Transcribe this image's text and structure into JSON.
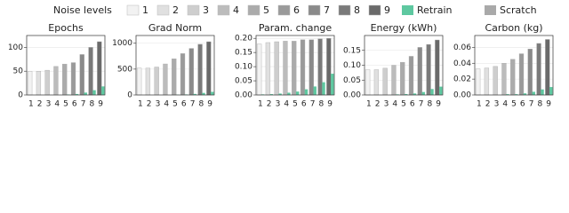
{
  "legend": {
    "title": "Noise levels",
    "labels": [
      "1",
      "2",
      "3",
      "4",
      "5",
      "6",
      "7",
      "8",
      "9"
    ]
  },
  "chart_data": [
    {
      "type": "bar",
      "title": "Epochs",
      "categories": [
        "1",
        "2",
        "3",
        "4",
        "5",
        "6",
        "7",
        "8",
        "9"
      ],
      "series": [
        {
          "name": "Retrain",
          "color": "#5ec8a0",
          "values": [
            0,
            0,
            0,
            0,
            1,
            2,
            5,
            10,
            18
          ]
        },
        {
          "name": "Scratch",
          "color": "#a9a9a9",
          "colors": [
            "#f2f2f2",
            "#e0e0e0",
            "#cecece",
            "#bcbcbc",
            "#ababab",
            "#9a9a9a",
            "#8a8a8a",
            "#7a7a7a",
            "#6a6a6a"
          ],
          "values": [
            50,
            50,
            52,
            60,
            65,
            68,
            85,
            100,
            112
          ]
        }
      ],
      "ylim": [
        0,
        125
      ],
      "yticks": [
        0,
        50,
        100
      ]
    },
    {
      "type": "bar",
      "title": "Grad Norm",
      "categories": [
        "1",
        "2",
        "3",
        "4",
        "5",
        "6",
        "7",
        "8",
        "9"
      ],
      "series": [
        {
          "name": "Retrain",
          "color": "#5ec8a0",
          "values": [
            0,
            0,
            0,
            0,
            5,
            10,
            20,
            40,
            60
          ]
        },
        {
          "name": "Scratch",
          "color": "#a9a9a9",
          "colors": [
            "#f2f2f2",
            "#e0e0e0",
            "#cecece",
            "#bcbcbc",
            "#ababab",
            "#9a9a9a",
            "#8a8a8a",
            "#7a7a7a",
            "#6a6a6a"
          ],
          "values": [
            520,
            520,
            540,
            600,
            700,
            800,
            900,
            980,
            1030
          ]
        }
      ],
      "ylim": [
        0,
        1150
      ],
      "yticks": [
        0,
        500,
        1000
      ]
    },
    {
      "type": "bar",
      "title": "Param. change",
      "categories": [
        "1",
        "2",
        "3",
        "4",
        "5",
        "6",
        "7",
        "8",
        "9"
      ],
      "series": [
        {
          "name": "Retrain",
          "color": "#5ec8a0",
          "values": [
            0.002,
            0.003,
            0.005,
            0.008,
            0.012,
            0.02,
            0.03,
            0.045,
            0.075
          ]
        },
        {
          "name": "Scratch",
          "color": "#a9a9a9",
          "colors": [
            "#f2f2f2",
            "#e0e0e0",
            "#cecece",
            "#bcbcbc",
            "#ababab",
            "#9a9a9a",
            "#8a8a8a",
            "#7a7a7a",
            "#6a6a6a"
          ],
          "values": [
            0.18,
            0.185,
            0.188,
            0.19,
            0.19,
            0.195,
            0.195,
            0.198,
            0.2
          ]
        }
      ],
      "ylim": [
        0,
        0.21
      ],
      "yticks": [
        {
          "value": 0,
          "label": "0.00"
        },
        {
          "value": 0.05,
          "label": "0.05"
        },
        {
          "value": 0.1,
          "label": "0.10"
        },
        {
          "value": 0.15,
          "label": "0.15"
        },
        {
          "value": 0.2,
          "label": "0.20"
        }
      ]
    },
    {
      "type": "bar",
      "title": "Energy (kWh)",
      "categories": [
        "1",
        "2",
        "3",
        "4",
        "5",
        "6",
        "7",
        "8",
        "9"
      ],
      "series": [
        {
          "name": "Retrain",
          "color": "#5ec8a0",
          "values": [
            0,
            0,
            0,
            0.002,
            0.003,
            0.005,
            0.01,
            0.02,
            0.028
          ]
        },
        {
          "name": "Scratch",
          "color": "#a9a9a9",
          "colors": [
            "#f2f2f2",
            "#e0e0e0",
            "#cecece",
            "#bcbcbc",
            "#ababab",
            "#9a9a9a",
            "#8a8a8a",
            "#7a7a7a",
            "#6a6a6a"
          ],
          "values": [
            0.085,
            0.085,
            0.09,
            0.1,
            0.11,
            0.13,
            0.16,
            0.17,
            0.185
          ]
        }
      ],
      "ylim": [
        0,
        0.2
      ],
      "yticks": [
        {
          "value": 0,
          "label": "0.00"
        },
        {
          "value": 0.05,
          "label": "0.05"
        },
        {
          "value": 0.1,
          "label": "0.10"
        },
        {
          "value": 0.15,
          "label": "0.15"
        }
      ]
    },
    {
      "type": "bar",
      "title": "Carbon (kg)",
      "categories": [
        "1",
        "2",
        "3",
        "4",
        "5",
        "6",
        "7",
        "8",
        "9"
      ],
      "series": [
        {
          "name": "Retrain",
          "color": "#5ec8a0",
          "values": [
            0,
            0,
            0,
            0.001,
            0.001,
            0.002,
            0.004,
            0.007,
            0.01
          ]
        },
        {
          "name": "Scratch",
          "color": "#a9a9a9",
          "colors": [
            "#f2f2f2",
            "#e0e0e0",
            "#cecece",
            "#bcbcbc",
            "#ababab",
            "#9a9a9a",
            "#8a8a8a",
            "#7a7a7a",
            "#6a6a6a"
          ],
          "values": [
            0.033,
            0.034,
            0.036,
            0.04,
            0.045,
            0.052,
            0.058,
            0.065,
            0.07
          ]
        }
      ],
      "ylim": [
        0,
        0.075
      ],
      "yticks": [
        {
          "value": 0,
          "label": "0.00"
        },
        {
          "value": 0.02,
          "label": "0.02"
        },
        {
          "value": 0.04,
          "label": "0.04"
        },
        {
          "value": 0.06,
          "label": "0.06"
        }
      ]
    }
  ]
}
